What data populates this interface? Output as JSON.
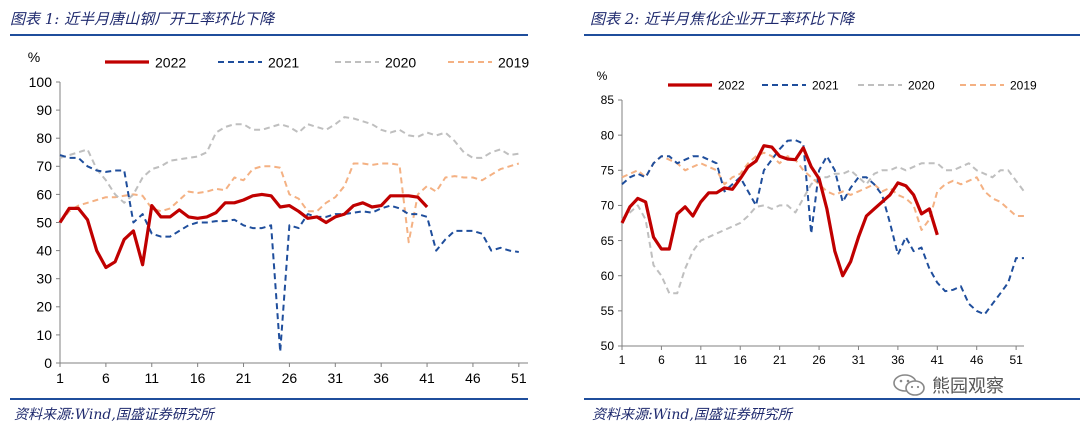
{
  "charts": [
    {
      "figure_title": "图表 1:  近半月唐山钢厂开工率环比下降",
      "source": "资料来源:Wind,国盛证券研究所"
    },
    {
      "figure_title": "图表 2:  近半月焦化企业开工率环比下降",
      "source": "资料来源:Wind,国盛证券研究所"
    }
  ],
  "watermark": {
    "text": "熊园观察"
  },
  "colors": {
    "2022": "#c00000",
    "2021": "#1f4e9c",
    "2020": "#bfbfbf",
    "2019": "#f4b183"
  },
  "chart_data": [
    {
      "type": "line",
      "title": "近半月唐山钢厂开工率环比下降",
      "ylabel": "%",
      "ylim": [
        0,
        100
      ],
      "yticks": [
        0,
        10,
        20,
        30,
        40,
        50,
        60,
        70,
        80,
        90,
        100
      ],
      "xlim": [
        1,
        52
      ],
      "xticks": [
        1,
        6,
        11,
        16,
        21,
        26,
        31,
        36,
        41,
        46,
        51
      ],
      "series": [
        {
          "name": "2022",
          "style": "solid",
          "values": [
            50,
            55,
            55,
            51,
            40,
            34,
            36,
            44,
            47,
            35,
            56,
            52,
            52,
            54.5,
            52,
            51.5,
            52,
            53.5,
            57,
            57,
            58,
            59.5,
            60,
            59.5,
            55.5,
            56,
            54,
            51.5,
            52,
            50,
            52,
            53,
            56,
            57,
            55.5,
            56,
            59.5,
            59.5,
            59.5,
            59,
            55.5
          ]
        },
        {
          "name": "2021",
          "style": "dashed",
          "values": [
            74,
            73,
            73,
            70,
            68.5,
            68,
            68.5,
            68.5,
            50,
            53,
            46,
            45,
            45,
            47,
            49,
            50,
            50,
            50.5,
            50.5,
            51,
            49,
            48,
            48,
            49,
            4,
            49,
            48,
            53,
            52,
            52,
            53,
            53,
            53.5,
            54,
            53.5,
            55,
            56,
            55,
            53,
            53,
            52,
            40,
            44,
            47,
            47,
            47,
            46,
            40,
            41,
            40,
            39.5
          ]
        },
        {
          "name": "2020",
          "style": "dashed",
          "values": [
            73,
            74,
            75,
            76,
            69,
            65,
            60,
            57,
            60,
            66,
            69,
            70,
            72,
            72.5,
            73,
            73.5,
            75,
            82,
            84,
            85,
            85,
            83,
            83,
            84,
            85,
            84,
            82,
            85,
            84,
            83,
            85,
            87.5,
            87,
            86,
            85,
            83,
            82,
            83,
            81,
            80.5,
            82,
            81,
            82,
            79,
            75,
            73,
            73,
            75,
            76,
            74,
            74.5
          ]
        },
        {
          "name": "2019",
          "style": "dashed",
          "values": [
            50,
            54,
            56,
            57,
            58,
            59,
            59,
            59.5,
            60,
            59.5,
            55,
            54,
            55,
            58,
            61,
            60.5,
            61,
            62,
            61.5,
            66,
            65,
            69,
            70,
            70,
            69.5,
            60,
            58.5,
            54,
            54,
            57,
            59,
            63,
            71,
            71,
            70.5,
            71,
            71,
            70.5,
            43,
            60,
            63,
            61,
            66,
            66.5,
            66,
            66,
            65,
            67,
            69,
            70,
            71
          ]
        }
      ]
    },
    {
      "type": "line",
      "title": "近半月焦化企业开工率环比下降",
      "ylabel": "%",
      "ylim": [
        50,
        85
      ],
      "yticks": [
        50,
        55,
        60,
        65,
        70,
        75,
        80,
        85
      ],
      "xlim": [
        1,
        52
      ],
      "xticks": [
        1,
        6,
        11,
        16,
        21,
        26,
        31,
        36,
        41,
        46,
        51
      ],
      "series": [
        {
          "name": "2022",
          "style": "solid",
          "values": [
            67.5,
            69.8,
            71,
            70.5,
            65.5,
            63.8,
            63.8,
            68.8,
            69.8,
            68.5,
            70.5,
            71.8,
            71.8,
            72.5,
            72.3,
            73.8,
            75.5,
            76.3,
            78.5,
            78.3,
            77,
            76.6,
            76.5,
            78.2,
            75.5,
            73.8,
            69.5,
            63.5,
            60,
            62,
            65.5,
            68.5,
            69.5,
            70.5,
            71.5,
            73.2,
            72.8,
            71.5,
            68.8,
            69.5,
            65.8
          ]
        },
        {
          "name": "2021",
          "style": "dashed",
          "values": [
            73,
            74,
            74.5,
            74,
            76,
            77,
            77,
            76,
            76.5,
            77,
            77,
            76.5,
            76,
            72,
            73,
            74,
            72,
            70,
            75,
            76.5,
            78,
            79.2,
            79.3,
            78.8,
            66,
            75,
            77,
            75,
            70.5,
            72.5,
            74,
            74,
            73,
            71.5,
            67.5,
            63,
            65.5,
            63.5,
            64,
            61,
            59,
            57.8,
            58,
            58.5,
            56,
            55,
            54.5,
            56,
            57.5,
            59,
            62.5,
            62.5
          ]
        },
        {
          "name": "2020",
          "style": "dashed",
          "values": [
            68,
            69,
            70,
            68,
            61.5,
            60,
            57.5,
            57.5,
            61,
            63.5,
            65,
            65.5,
            66,
            66.5,
            67,
            67.5,
            68.5,
            69.8,
            70,
            69.5,
            70,
            70,
            69,
            71,
            73,
            74,
            74,
            74.5,
            74.5,
            75,
            74,
            73,
            74.5,
            75,
            75,
            75.5,
            75,
            75.5,
            76,
            76,
            76,
            75,
            75,
            75.5,
            76,
            75,
            74.5,
            74,
            75,
            75,
            73.5,
            72
          ]
        },
        {
          "name": "2019",
          "style": "dashed",
          "values": [
            74,
            74.5,
            75,
            74,
            76,
            77,
            76.5,
            76,
            75,
            75.5,
            76,
            75.5,
            75,
            73,
            74,
            74.5,
            76,
            77,
            77.5,
            77,
            76,
            77,
            76.5,
            75,
            74,
            73,
            72,
            71.5,
            72,
            71.5,
            72,
            72.5,
            73,
            72,
            72.5,
            71.5,
            71,
            70,
            66.5,
            68,
            72,
            73,
            73.5,
            73,
            73.5,
            74,
            72,
            71,
            70.5,
            69.5,
            68.5,
            68.5
          ]
        }
      ]
    }
  ]
}
